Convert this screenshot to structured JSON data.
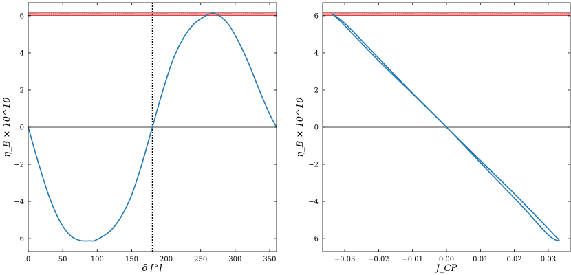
{
  "chart_data": [
    {
      "type": "line",
      "xlabel": "δ [°]",
      "ylabel": "η_B × 10^10",
      "xlim": [
        0,
        360
      ],
      "ylim": [
        -6.7,
        6.7
      ],
      "xticks": [
        0,
        50,
        100,
        150,
        200,
        250,
        300,
        350
      ],
      "yticks": [
        -6,
        -4,
        -2,
        0,
        2,
        4,
        6
      ],
      "observed_band": {
        "center": 6.1,
        "half_width": 0.08,
        "color": "#d62728"
      },
      "zero_line": 0,
      "vline": 180,
      "series": [
        {
          "color": "#1f77b4",
          "x": [
            0,
            15,
            30,
            45,
            60,
            75,
            90,
            95,
            105,
            120,
            135,
            150,
            165,
            180,
            195,
            210,
            225,
            240,
            255,
            265,
            275,
            290,
            305,
            320,
            335,
            350,
            360
          ],
          "y": [
            0,
            -1.95,
            -3.7,
            -5.0,
            -5.8,
            -6.1,
            -6.12,
            -6.12,
            -5.95,
            -5.55,
            -4.8,
            -3.65,
            -1.95,
            0,
            1.95,
            3.65,
            4.8,
            5.55,
            5.95,
            6.12,
            6.05,
            5.55,
            4.6,
            3.4,
            2.0,
            0.7,
            0
          ]
        }
      ]
    },
    {
      "type": "line",
      "xlabel": "J_CP",
      "ylabel": "η_B × 10^10",
      "xlim": [
        -0.0365,
        0.0365
      ],
      "ylim": [
        -6.7,
        6.7
      ],
      "xticks": [
        -0.03,
        -0.02,
        -0.01,
        0.0,
        0.01,
        0.02,
        0.03
      ],
      "xtick_labels": [
        "−0.03",
        "−0.02",
        "−0.01",
        "0.00",
        "0.01",
        "0.02",
        "0.03"
      ],
      "yticks": [
        -6,
        -4,
        -2,
        0,
        2,
        4,
        6
      ],
      "observed_band": {
        "center": 6.1,
        "half_width": 0.08,
        "color": "#d62728"
      },
      "zero_line": 0,
      "series": [
        {
          "color": "#1f77b4",
          "x": [
            -0.0337,
            -0.0312,
            -0.0265,
            -0.019,
            -0.01,
            0.0,
            0.01,
            0.019,
            0.0265,
            0.0312,
            0.0332,
            0.03,
            0.022,
            0.012,
            0.0,
            -0.012,
            -0.022,
            -0.03,
            -0.0337
          ],
          "y": [
            6.1,
            5.7,
            4.8,
            3.4,
            1.8,
            0.0,
            -1.8,
            -3.4,
            -4.8,
            -5.7,
            -6.1,
            -5.8,
            -4.2,
            -2.3,
            0.0,
            2.2,
            4.1,
            5.6,
            6.1
          ]
        }
      ]
    }
  ]
}
